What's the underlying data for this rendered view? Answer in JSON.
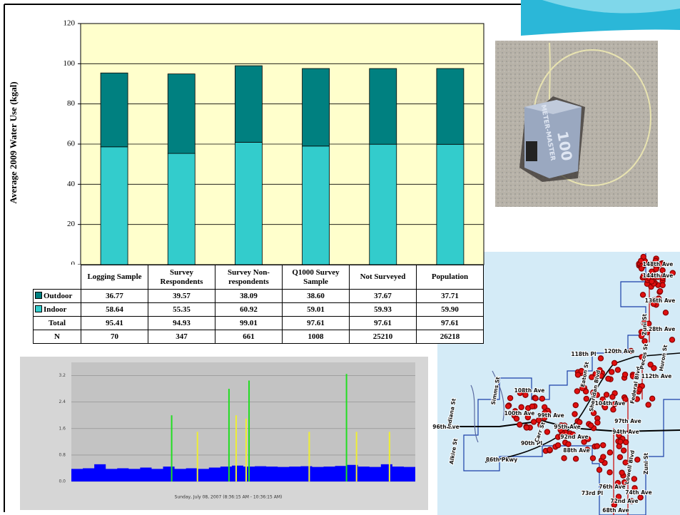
{
  "chart_data": [
    {
      "type": "stacked-bar",
      "ylabel": "Average 2009 Water Use (kgal)",
      "categories": [
        "Logging Sample",
        "Survey Respondents",
        "Survey Non-respondents",
        "Q1000 Survey Sample",
        "Not Surveyed",
        "Population"
      ],
      "series": [
        {
          "name": "Outdoor",
          "color": "#008080",
          "values": [
            36.77,
            39.57,
            38.09,
            38.6,
            37.67,
            37.71
          ],
          "value_labels": [
            "36.77",
            "39.57",
            "38.09",
            "38.60",
            "37.67",
            "37.71"
          ]
        },
        {
          "name": "Indoor",
          "color": "#33cccc",
          "values": [
            58.64,
            55.35,
            60.92,
            59.01,
            59.93,
            59.9
          ],
          "value_labels": [
            "58.64",
            "55.35",
            "60.92",
            "59.01",
            "59.93",
            "59.90"
          ]
        }
      ],
      "table": {
        "rows": [
          {
            "label": "Total",
            "values": [
              95.41,
              94.93,
              99.01,
              97.61,
              97.61,
              97.61
            ]
          },
          {
            "label": "N",
            "values": [
              70,
              347,
              661,
              1008,
              25210,
              26218
            ]
          }
        ]
      },
      "ylim": [
        0,
        120
      ],
      "yticks": [
        0,
        20,
        40,
        60,
        80,
        100,
        120
      ],
      "grid": true,
      "background": "#ffffcc"
    },
    {
      "type": "spike",
      "caption": "Sunday, July 08, 2007 (8:36:15 AM - 10:36:15 AM)",
      "xlim": [
        0,
        120
      ],
      "ylim": [
        0,
        3.6
      ],
      "yticks": [
        {
          "value": 0,
          "label": "0.0"
        },
        0.8,
        1.6,
        2.4,
        3.2
      ],
      "grid": true,
      "series": [
        {
          "color": "#0000ff",
          "style": "area",
          "x": [
            0,
            4,
            8,
            12,
            16,
            20,
            24,
            28,
            32,
            36,
            40,
            44,
            48,
            52,
            56,
            60,
            64,
            68,
            72,
            76,
            80,
            84,
            88,
            92,
            96,
            100,
            104,
            108,
            112,
            116,
            120
          ],
          "values": [
            0.38,
            0.4,
            0.52,
            0.38,
            0.4,
            0.38,
            0.42,
            0.38,
            0.45,
            0.38,
            0.4,
            0.38,
            0.42,
            0.45,
            0.48,
            0.45,
            0.46,
            0.45,
            0.44,
            0.45,
            0.46,
            0.44,
            0.45,
            0.47,
            0.5,
            0.45,
            0.44,
            0.52,
            0.45,
            0.44,
            0.45
          ]
        },
        {
          "color": "#22dd22",
          "style": "spike",
          "x": [
            35,
            55,
            62,
            96
          ],
          "values": [
            2.0,
            2.8,
            3.05,
            3.25
          ]
        },
        {
          "color": "#eeee33",
          "style": "spike",
          "x": [
            44,
            57.5,
            61,
            83,
            99.5,
            111
          ],
          "values": [
            1.5,
            2.0,
            1.9,
            1.5,
            1.5,
            1.5
          ]
        }
      ]
    }
  ],
  "photo": {
    "label": "METER-MASTER",
    "model": "100"
  },
  "map": {
    "labels": [
      "148th Ave",
      "144th Ave",
      "136th Ave",
      "128th Ave",
      "120th Ave",
      "118th Pl",
      "112th Ave",
      "108th Ave",
      "104th Ave",
      "100th Ave",
      "99th Ave",
      "97th Ave",
      "96th Ave",
      "95th Ave",
      "94th Ave",
      "92nd Ave",
      "90th Pl",
      "88th Ave",
      "86th Pkwy",
      "76th Ave",
      "74th Ave",
      "73rd Pl",
      "72nd Ave",
      "68th Ave",
      "Indiana St",
      "Simms St",
      "Zuni St",
      "Federal Blvd",
      "Sheridan Blvd",
      "Lowell Blvd",
      "Pecos St",
      "Huron St",
      "Eaton St",
      "Carr St",
      "Alkire St",
      "Zuni St"
    ]
  }
}
